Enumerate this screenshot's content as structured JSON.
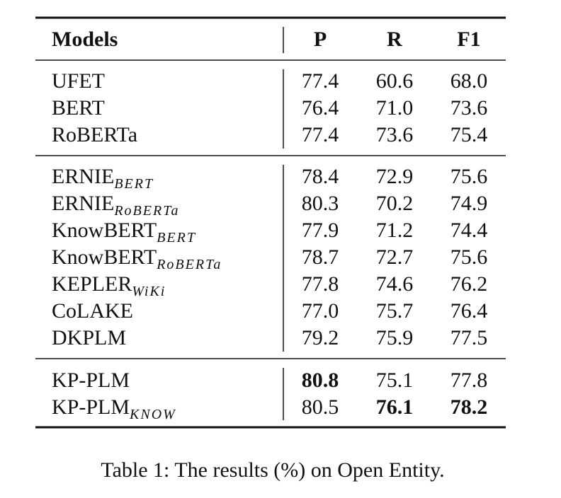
{
  "table": {
    "header": [
      "Models",
      "P",
      "R",
      "F1"
    ],
    "groups": [
      [
        {
          "model": "UFET",
          "values": [
            "77.4",
            "60.6",
            "68.0"
          ]
        },
        {
          "model": "BERT",
          "values": [
            "76.4",
            "71.0",
            "73.6"
          ]
        },
        {
          "model": "RoBERTa",
          "values": [
            "77.4",
            "73.6",
            "75.4"
          ]
        }
      ],
      [
        {
          "model": "ERNIE",
          "sub": "BERT",
          "values": [
            "78.4",
            "72.9",
            "75.6"
          ]
        },
        {
          "model": "ERNIE",
          "sub": "RoBERTa",
          "values": [
            "80.3",
            "70.2",
            "74.9"
          ]
        },
        {
          "model": "KnowBERT",
          "sub": "BERT",
          "values": [
            "77.9",
            "71.2",
            "74.4"
          ]
        },
        {
          "model": "KnowBERT",
          "sub": "RoBERTa",
          "values": [
            "78.7",
            "72.7",
            "75.6"
          ]
        },
        {
          "model": "KEPLER",
          "sub": "WiKi",
          "values": [
            "77.8",
            "74.6",
            "76.2"
          ]
        },
        {
          "model": "CoLAKE",
          "values": [
            "77.0",
            "75.7",
            "76.4"
          ]
        },
        {
          "model": "DKPLM",
          "values": [
            "79.2",
            "75.9",
            "77.5"
          ]
        }
      ],
      [
        {
          "model": "KP-PLM",
          "values": [
            "80.8",
            "75.1",
            "77.8"
          ],
          "bold": [
            0
          ]
        },
        {
          "model": "KP-PLM",
          "sub": "KNOW",
          "values": [
            "80.5",
            "76.1",
            "78.2"
          ],
          "bold": [
            1,
            2
          ]
        }
      ]
    ]
  },
  "caption": "Table 1: The results (%) on Open Entity."
}
